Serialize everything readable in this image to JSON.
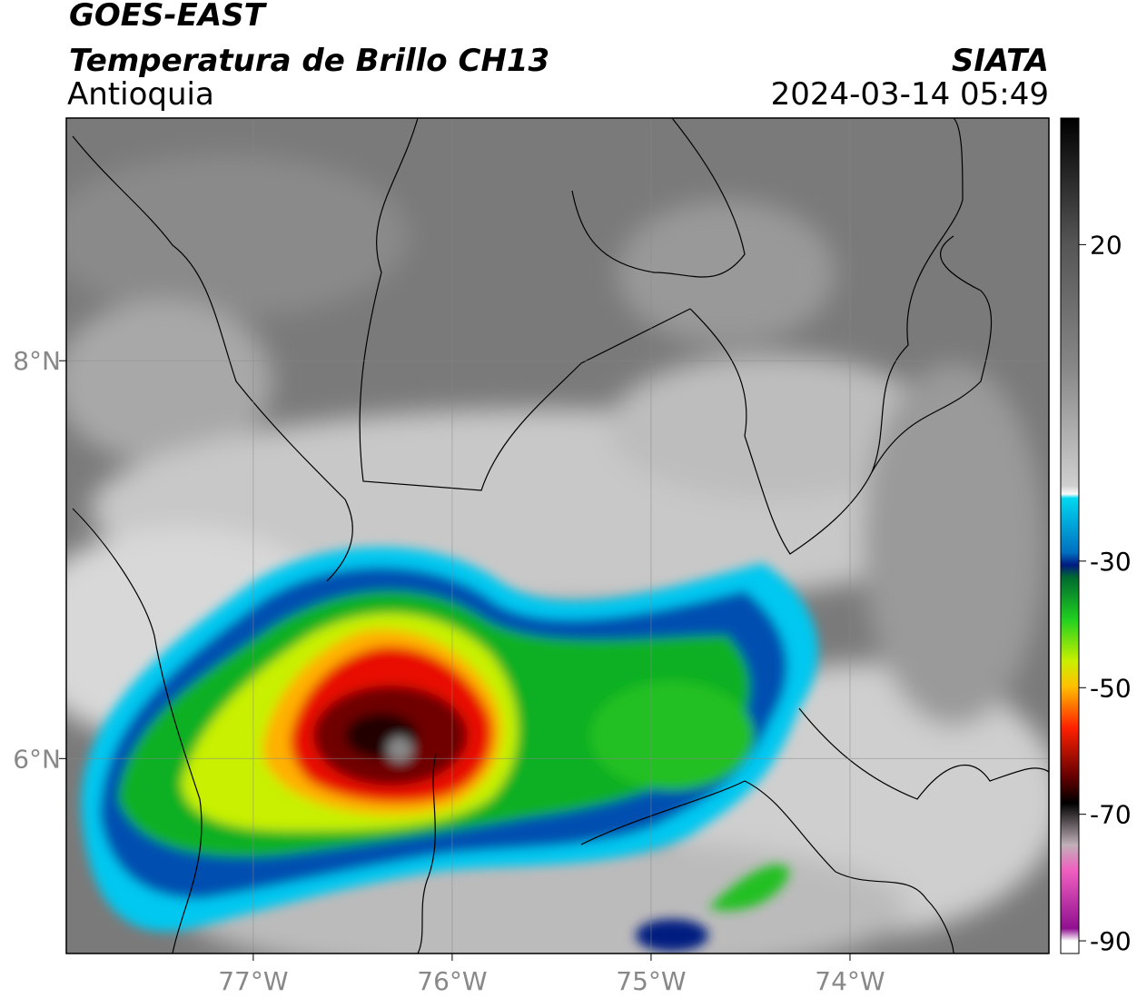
{
  "header": {
    "satellite": "GOES-EAST",
    "product": "Temperatura de Brillo CH13",
    "region": "Antioquia",
    "agency": "SIATA",
    "datetime": "2024-03-14 05:49"
  },
  "map": {
    "xlim": [
      -77.94,
      -73.0
    ],
    "ylim": [
      5.02,
      9.22
    ],
    "xticks": [
      {
        "value": -77,
        "label": "77°W"
      },
      {
        "value": -76,
        "label": "76°W"
      },
      {
        "value": -75,
        "label": "75°W"
      },
      {
        "value": -74,
        "label": "74°W"
      }
    ],
    "yticks": [
      {
        "value": 8,
        "label": "8°N"
      },
      {
        "value": 6,
        "label": "6°N"
      }
    ],
    "grid": true
  },
  "colorbar": {
    "range": [
      -92,
      40
    ],
    "ticks": [
      20,
      -30,
      -50,
      -70,
      -90
    ]
  }
}
